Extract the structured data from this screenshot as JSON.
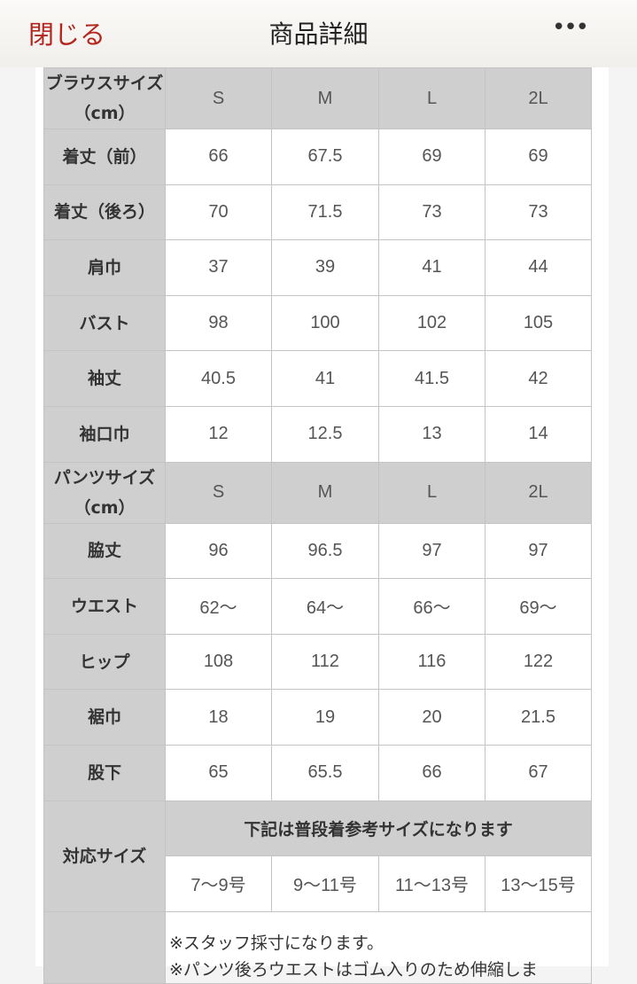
{
  "header": {
    "close_label": "閉じる",
    "title": "商品詳細",
    "more_icon": "ellipsis-icon",
    "more_label": "•••",
    "accent": "#b3261e"
  },
  "sizes": [
    "S",
    "M",
    "L",
    "2L"
  ],
  "blouse": {
    "header": "ブラウスサイズ（cm）",
    "rows": [
      {
        "label": "着丈（前）",
        "values": [
          "66",
          "67.5",
          "69",
          "69"
        ]
      },
      {
        "label": "着丈（後ろ）",
        "values": [
          "70",
          "71.5",
          "73",
          "73"
        ]
      },
      {
        "label": "肩巾",
        "values": [
          "37",
          "39",
          "41",
          "44"
        ]
      },
      {
        "label": "バスト",
        "values": [
          "98",
          "100",
          "102",
          "105"
        ]
      },
      {
        "label": "袖丈",
        "values": [
          "40.5",
          "41",
          "41.5",
          "42"
        ]
      },
      {
        "label": "袖口巾",
        "values": [
          "12",
          "12.5",
          "13",
          "14"
        ]
      }
    ]
  },
  "pants": {
    "header": "パンツサイズ（cm）",
    "rows": [
      {
        "label": "脇丈",
        "values": [
          "96",
          "96.5",
          "97",
          "97"
        ]
      },
      {
        "label": "ウエスト",
        "values": [
          "62〜",
          "64〜",
          "66〜",
          "69〜"
        ]
      },
      {
        "label": "ヒップ",
        "values": [
          "108",
          "112",
          "116",
          "122"
        ]
      },
      {
        "label": "裾巾",
        "values": [
          "18",
          "19",
          "20",
          "21.5"
        ]
      },
      {
        "label": "股下",
        "values": [
          "65",
          "65.5",
          "66",
          "67"
        ]
      }
    ]
  },
  "fit": {
    "label": "対応サイズ",
    "notice": "下記は普段着参考サイズになります",
    "values": [
      "7〜9号",
      "9〜11号",
      "11〜13号",
      "13〜15号"
    ]
  },
  "notes": [
    "※スタッフ採寸になります。",
    "※パンツ後ろウエストはゴム入りのため伸縮しま"
  ]
}
